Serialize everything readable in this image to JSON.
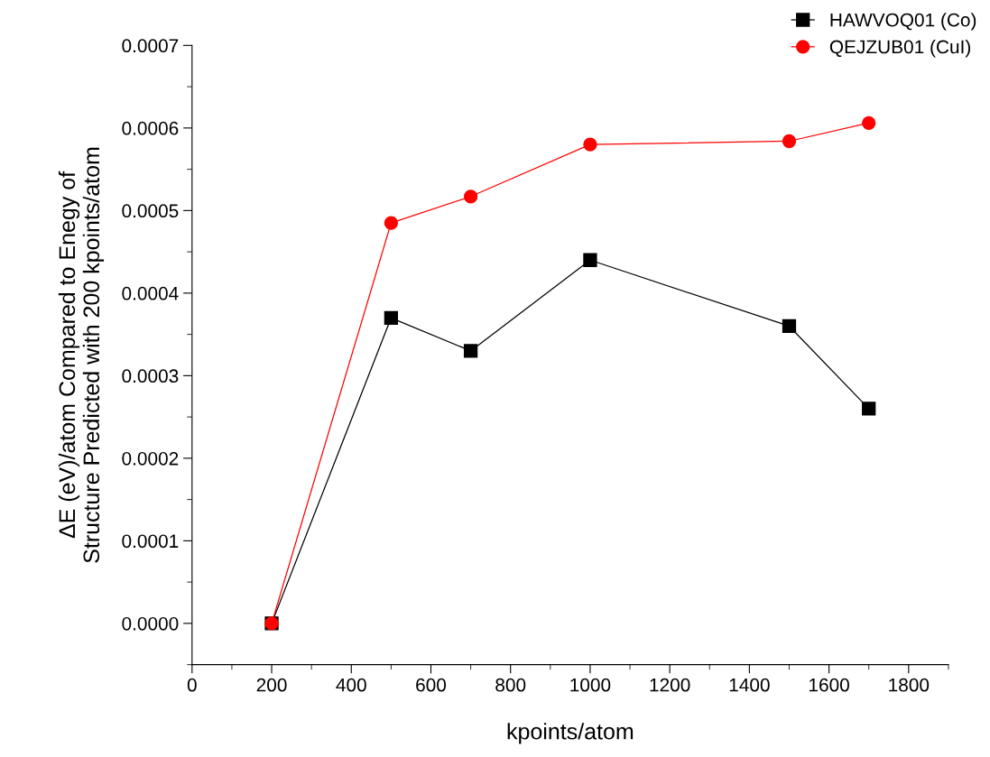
{
  "chart_data": {
    "type": "line",
    "xlabel": "kpoints/atom",
    "ylabel": "ΔE (eV)/atom Compared to Enegy of\nStructure Predicted with 200 kpoints/atom",
    "x": [
      200,
      500,
      700,
      1000,
      1500,
      1700
    ],
    "series": [
      {
        "name": "HAWVOQ01 (Co)",
        "color": "#000000",
        "marker": "square",
        "values": [
          0.0,
          0.00037,
          0.00033,
          0.00044,
          0.00036,
          0.00026
        ]
      },
      {
        "name": "QEJZUB01 (CuI)",
        "color": "#ff0000",
        "marker": "circle",
        "values": [
          0.0,
          0.000485,
          0.000517,
          0.00058,
          0.000584,
          0.000606
        ]
      }
    ],
    "xlim": [
      0,
      1900
    ],
    "xticks": [
      0,
      200,
      400,
      600,
      800,
      1000,
      1200,
      1400,
      1600,
      1800
    ],
    "ylim": [
      -5e-05,
      0.0007
    ],
    "yticks": [
      {
        "value": 0,
        "label": "0.0000"
      },
      {
        "value": 0.0001,
        "label": "0.0001"
      },
      {
        "value": 0.0002,
        "label": "0.0002"
      },
      {
        "value": 0.0003,
        "label": "0.0003"
      },
      {
        "value": 0.0004,
        "label": "0.0004"
      },
      {
        "value": 0.0005,
        "label": "0.0005"
      },
      {
        "value": 0.0006,
        "label": "0.0006"
      },
      {
        "value": 0.0007,
        "label": "0.0007"
      }
    ],
    "grid": false,
    "legend": "top right",
    "line_style": "solid"
  }
}
